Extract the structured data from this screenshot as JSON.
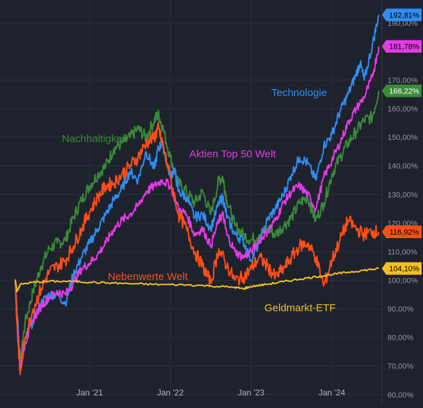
{
  "chart_data": {
    "type": "line",
    "title": "",
    "xlabel": "",
    "ylabel": "",
    "x_range": [
      2020.08,
      2024.62
    ],
    "ylim": [
      58,
      198
    ],
    "y_ticks": [
      {
        "value": 60,
        "label": "60,00%"
      },
      {
        "value": 70,
        "label": "70,00%"
      },
      {
        "value": 80,
        "label": "80,00%"
      },
      {
        "value": 90,
        "label": "90,00%"
      },
      {
        "value": 100,
        "label": "100,00%"
      },
      {
        "value": 110,
        "label": "110,00%"
      },
      {
        "value": 120,
        "label": "120,00%"
      },
      {
        "value": 130,
        "label": "130,00%"
      },
      {
        "value": 140,
        "label": "140,00%"
      },
      {
        "value": 150,
        "label": "150,00%"
      },
      {
        "value": 160,
        "label": "160,00%"
      },
      {
        "value": 170,
        "label": "170,00%"
      },
      {
        "value": 190,
        "label": "190,00%"
      }
    ],
    "x_ticks": [
      {
        "value": 2021.0,
        "label": "Jan '21"
      },
      {
        "value": 2022.0,
        "label": "Jan '22"
      },
      {
        "value": 2023.0,
        "label": "Jan '23"
      },
      {
        "value": 2024.0,
        "label": "Jan '24"
      }
    ],
    "grid": true,
    "series": [
      {
        "name": "Technologie",
        "color": "#2f8df2",
        "last_label": "192,81%",
        "points": [
          [
            2020.08,
            100
          ],
          [
            2020.1,
            90
          ],
          [
            2020.14,
            70
          ],
          [
            2020.2,
            79
          ],
          [
            2020.3,
            86
          ],
          [
            2020.4,
            92
          ],
          [
            2020.5,
            95
          ],
          [
            2020.6,
            95
          ],
          [
            2020.7,
            92
          ],
          [
            2020.8,
            102
          ],
          [
            2020.9,
            108
          ],
          [
            2021.0,
            113
          ],
          [
            2021.1,
            118
          ],
          [
            2021.2,
            123
          ],
          [
            2021.3,
            128
          ],
          [
            2021.4,
            132
          ],
          [
            2021.5,
            138
          ],
          [
            2021.6,
            135
          ],
          [
            2021.7,
            145
          ],
          [
            2021.8,
            139
          ],
          [
            2021.85,
            146
          ],
          [
            2021.9,
            148
          ],
          [
            2022.0,
            136
          ],
          [
            2022.05,
            139
          ],
          [
            2022.1,
            131
          ],
          [
            2022.2,
            129
          ],
          [
            2022.3,
            122
          ],
          [
            2022.4,
            123
          ],
          [
            2022.5,
            118
          ],
          [
            2022.6,
            127
          ],
          [
            2022.65,
            129
          ],
          [
            2022.7,
            122
          ],
          [
            2022.8,
            116
          ],
          [
            2022.9,
            114
          ],
          [
            2023.0,
            107
          ],
          [
            2023.1,
            113
          ],
          [
            2023.2,
            121
          ],
          [
            2023.3,
            125
          ],
          [
            2023.4,
            130
          ],
          [
            2023.5,
            137
          ],
          [
            2023.6,
            143
          ],
          [
            2023.7,
            141
          ],
          [
            2023.8,
            135
          ],
          [
            2023.9,
            147
          ],
          [
            2024.0,
            151
          ],
          [
            2024.1,
            159
          ],
          [
            2024.2,
            165
          ],
          [
            2024.3,
            172
          ],
          [
            2024.35,
            176
          ],
          [
            2024.4,
            170
          ],
          [
            2024.5,
            182
          ],
          [
            2024.58,
            192.81
          ]
        ]
      },
      {
        "name": "Aktien Top 50 Welt",
        "color": "#e43be8",
        "last_label": "181,78%",
        "points": [
          [
            2020.08,
            100
          ],
          [
            2020.1,
            88
          ],
          [
            2020.14,
            69
          ],
          [
            2020.2,
            78
          ],
          [
            2020.3,
            86
          ],
          [
            2020.4,
            91
          ],
          [
            2020.5,
            94
          ],
          [
            2020.6,
            96
          ],
          [
            2020.7,
            95
          ],
          [
            2020.8,
            99
          ],
          [
            2020.9,
            104
          ],
          [
            2021.0,
            106
          ],
          [
            2021.1,
            109
          ],
          [
            2021.2,
            113
          ],
          [
            2021.3,
            118
          ],
          [
            2021.4,
            121
          ],
          [
            2021.5,
            123
          ],
          [
            2021.6,
            126
          ],
          [
            2021.7,
            131
          ],
          [
            2021.8,
            133
          ],
          [
            2021.9,
            135
          ],
          [
            2022.0,
            133
          ],
          [
            2022.1,
            125
          ],
          [
            2022.2,
            123
          ],
          [
            2022.3,
            116
          ],
          [
            2022.4,
            118
          ],
          [
            2022.5,
            112
          ],
          [
            2022.6,
            121
          ],
          [
            2022.65,
            123
          ],
          [
            2022.7,
            116
          ],
          [
            2022.8,
            110
          ],
          [
            2022.9,
            108
          ],
          [
            2023.0,
            110
          ],
          [
            2023.1,
            114
          ],
          [
            2023.2,
            117
          ],
          [
            2023.3,
            121
          ],
          [
            2023.4,
            127
          ],
          [
            2023.5,
            131
          ],
          [
            2023.6,
            133
          ],
          [
            2023.7,
            130
          ],
          [
            2023.8,
            125
          ],
          [
            2023.9,
            136
          ],
          [
            2024.0,
            142
          ],
          [
            2024.1,
            148
          ],
          [
            2024.2,
            155
          ],
          [
            2024.3,
            160
          ],
          [
            2024.4,
            164
          ],
          [
            2024.5,
            171
          ],
          [
            2024.58,
            181.78
          ]
        ]
      },
      {
        "name": "Nachhaltigkeit",
        "color": "#3b8a3a",
        "last_label": "166,22%",
        "points": [
          [
            2020.08,
            100
          ],
          [
            2020.1,
            88
          ],
          [
            2020.14,
            71
          ],
          [
            2020.2,
            85
          ],
          [
            2020.3,
            96
          ],
          [
            2020.4,
            105
          ],
          [
            2020.5,
            111
          ],
          [
            2020.6,
            113
          ],
          [
            2020.7,
            114
          ],
          [
            2020.8,
            122
          ],
          [
            2020.9,
            128
          ],
          [
            2021.0,
            133
          ],
          [
            2021.1,
            137
          ],
          [
            2021.2,
            140
          ],
          [
            2021.3,
            146
          ],
          [
            2021.4,
            148
          ],
          [
            2021.5,
            150
          ],
          [
            2021.6,
            153
          ],
          [
            2021.7,
            150
          ],
          [
            2021.8,
            156
          ],
          [
            2021.85,
            158
          ],
          [
            2021.9,
            154
          ],
          [
            2022.0,
            143
          ],
          [
            2022.1,
            134
          ],
          [
            2022.2,
            131
          ],
          [
            2022.3,
            127
          ],
          [
            2022.4,
            131
          ],
          [
            2022.5,
            123
          ],
          [
            2022.6,
            135
          ],
          [
            2022.65,
            136
          ],
          [
            2022.7,
            128
          ],
          [
            2022.8,
            119
          ],
          [
            2022.9,
            116
          ],
          [
            2023.0,
            114
          ],
          [
            2023.1,
            116
          ],
          [
            2023.2,
            118
          ],
          [
            2023.3,
            116
          ],
          [
            2023.4,
            119
          ],
          [
            2023.5,
            122
          ],
          [
            2023.6,
            127
          ],
          [
            2023.7,
            129
          ],
          [
            2023.8,
            121
          ],
          [
            2023.9,
            127
          ],
          [
            2024.0,
            137
          ],
          [
            2024.1,
            143
          ],
          [
            2024.2,
            148
          ],
          [
            2024.3,
            152
          ],
          [
            2024.4,
            156
          ],
          [
            2024.5,
            157
          ],
          [
            2024.58,
            166.22
          ]
        ]
      },
      {
        "name": "Nebenwerte Welt",
        "color": "#ff4e17",
        "last_label": "116,92%",
        "points": [
          [
            2020.08,
            100
          ],
          [
            2020.1,
            85
          ],
          [
            2020.14,
            67
          ],
          [
            2020.2,
            80
          ],
          [
            2020.3,
            90
          ],
          [
            2020.4,
            97
          ],
          [
            2020.5,
            103
          ],
          [
            2020.6,
            105
          ],
          [
            2020.7,
            107
          ],
          [
            2020.8,
            112
          ],
          [
            2020.9,
            118
          ],
          [
            2021.0,
            124
          ],
          [
            2021.1,
            129
          ],
          [
            2021.2,
            133
          ],
          [
            2021.3,
            134
          ],
          [
            2021.4,
            137
          ],
          [
            2021.5,
            140
          ],
          [
            2021.6,
            143
          ],
          [
            2021.7,
            148
          ],
          [
            2021.8,
            150
          ],
          [
            2021.85,
            153
          ],
          [
            2021.9,
            148
          ],
          [
            2022.0,
            136
          ],
          [
            2022.1,
            123
          ],
          [
            2022.2,
            118
          ],
          [
            2022.3,
            110
          ],
          [
            2022.4,
            105
          ],
          [
            2022.5,
            99
          ],
          [
            2022.6,
            111
          ],
          [
            2022.7,
            105
          ],
          [
            2022.8,
            100
          ],
          [
            2022.9,
            101
          ],
          [
            2023.0,
            104
          ],
          [
            2023.1,
            108
          ],
          [
            2023.2,
            105
          ],
          [
            2023.3,
            101
          ],
          [
            2023.4,
            104
          ],
          [
            2023.5,
            108
          ],
          [
            2023.6,
            112
          ],
          [
            2023.7,
            113
          ],
          [
            2023.8,
            108
          ],
          [
            2023.9,
            98
          ],
          [
            2024.0,
            107
          ],
          [
            2024.1,
            114
          ],
          [
            2024.2,
            121
          ],
          [
            2024.3,
            118
          ],
          [
            2024.4,
            116
          ],
          [
            2024.5,
            117
          ],
          [
            2024.58,
            116.92
          ]
        ]
      },
      {
        "name": "Geldmarkt-ETF",
        "color": "#f5c01e",
        "last_label": "104,10%",
        "points": [
          [
            2020.08,
            100
          ],
          [
            2020.1,
            96
          ],
          [
            2020.14,
            98.5
          ],
          [
            2020.3,
            99.3
          ],
          [
            2020.5,
            99.6
          ],
          [
            2020.8,
            99.6
          ],
          [
            2021.0,
            99.3
          ],
          [
            2021.3,
            99.0
          ],
          [
            2021.6,
            98.7
          ],
          [
            2021.9,
            98.5
          ],
          [
            2022.2,
            98.4
          ],
          [
            2022.5,
            98.0
          ],
          [
            2022.8,
            97.5
          ],
          [
            2022.9,
            97.0
          ],
          [
            2023.0,
            97.8
          ],
          [
            2023.2,
            98.6
          ],
          [
            2023.4,
            99.5
          ],
          [
            2023.6,
            100.4
          ],
          [
            2023.8,
            101.2
          ],
          [
            2024.0,
            102.0
          ],
          [
            2024.2,
            102.8
          ],
          [
            2024.4,
            103.5
          ],
          [
            2024.58,
            104.1
          ]
        ]
      }
    ]
  }
}
